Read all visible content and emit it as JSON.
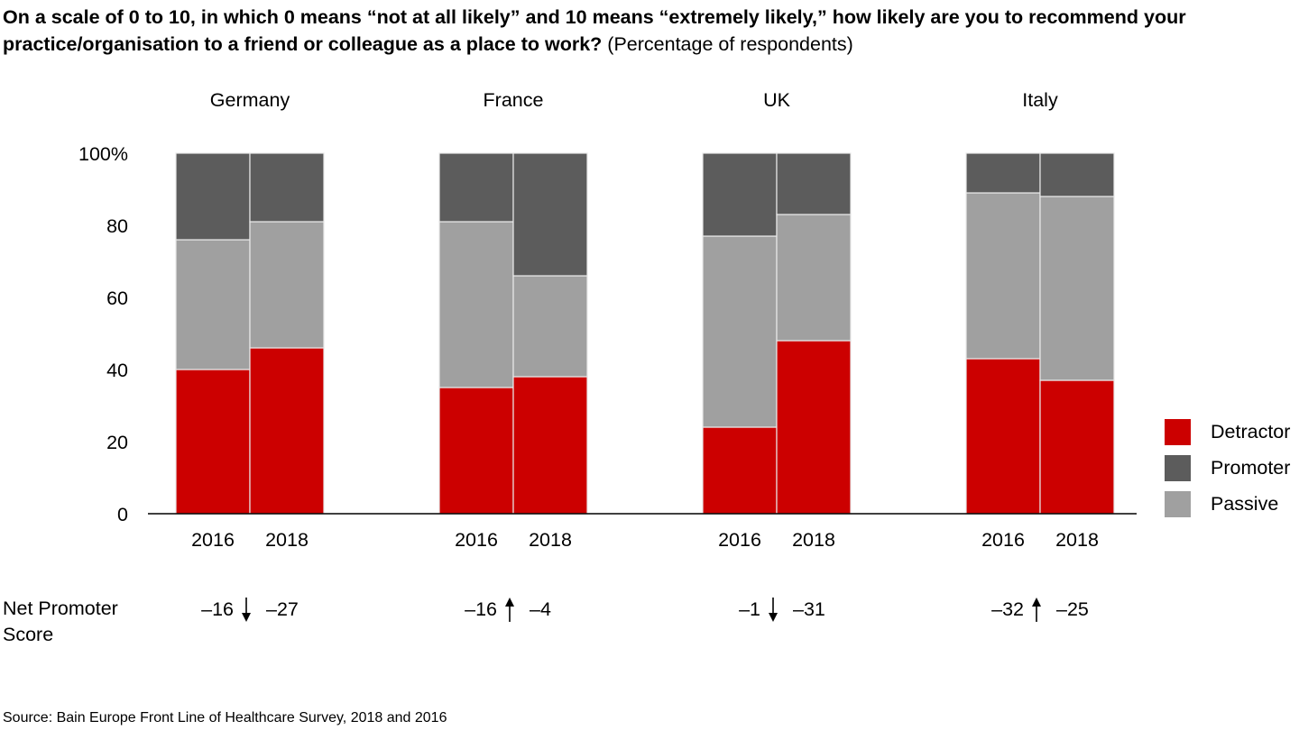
{
  "title": {
    "bold": "On a scale of 0 to 10, in which 0 means “not at all likely” and 10 means “extremely likely,” how likely are you to recommend your practice/organisation to a friend or colleague as a place to work?",
    "subtitle": "(Percentage of respondents)"
  },
  "nps": {
    "label_line1": "Net Promoter",
    "label_line2": "Score",
    "groups": [
      {
        "country": "Germany",
        "v2016": "–16",
        "v2018": "–27",
        "direction": "down"
      },
      {
        "country": "France",
        "v2016": "–16",
        "v2018": "–4",
        "direction": "up"
      },
      {
        "country": "UK",
        "v2016": "–1",
        "v2018": "–31",
        "direction": "down"
      },
      {
        "country": "Italy",
        "v2016": "–32",
        "v2018": "–25",
        "direction": "up"
      }
    ]
  },
  "source": "Source: Bain Europe Front Line of Healthcare Survey, 2018 and 2016",
  "colors": {
    "Detractor": "#cc0000",
    "Promoter": "#5c5c5c",
    "Passive": "#a0a0a0"
  },
  "chart_data": {
    "type": "bar",
    "stacked": true,
    "title": "On a scale of 0 to 10, how likely are you to recommend your practice/organisation to a friend or colleague as a place to work?",
    "ylabel": "Percentage of respondents",
    "ylim": [
      0,
      100
    ],
    "yticks": [
      "0",
      "20",
      "40",
      "60",
      "80",
      "100%"
    ],
    "ytick_values": [
      0,
      20,
      40,
      60,
      80,
      100
    ],
    "groups": [
      "Germany",
      "France",
      "UK",
      "Italy"
    ],
    "categories": [
      "2016",
      "2018"
    ],
    "stack_order": [
      "Detractor",
      "Passive",
      "Promoter"
    ],
    "legend": [
      "Detractor",
      "Promoter",
      "Passive"
    ],
    "legend_position": "right",
    "grid": false,
    "series": [
      {
        "name": "Detractor",
        "values": {
          "Germany": [
            40,
            46
          ],
          "France": [
            35,
            38
          ],
          "UK": [
            24,
            48
          ],
          "Italy": [
            43,
            37
          ]
        }
      },
      {
        "name": "Passive",
        "values": {
          "Germany": [
            36,
            35
          ],
          "France": [
            46,
            28
          ],
          "UK": [
            53,
            35
          ],
          "Italy": [
            46,
            51
          ]
        }
      },
      {
        "name": "Promoter",
        "values": {
          "Germany": [
            24,
            19
          ],
          "France": [
            19,
            34
          ],
          "UK": [
            23,
            17
          ],
          "Italy": [
            11,
            12
          ]
        }
      }
    ]
  }
}
